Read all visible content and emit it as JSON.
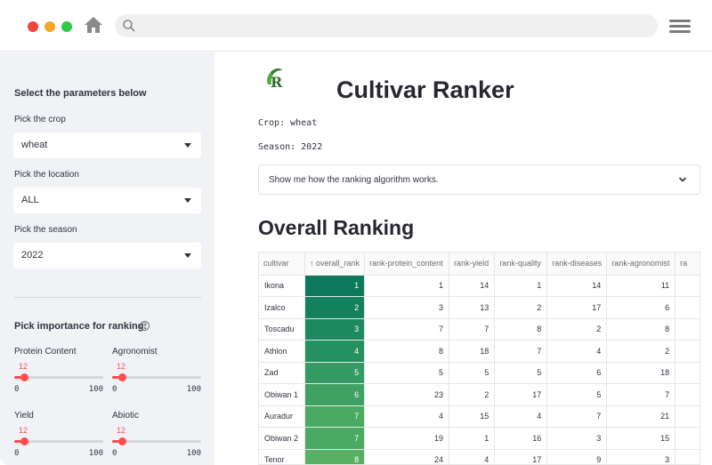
{
  "sidebar": {
    "title": "Select the parameters below",
    "crop": {
      "label": "Pick the crop",
      "value": "wheat"
    },
    "location": {
      "label": "Pick the location",
      "value": "ALL"
    },
    "season": {
      "label": "Pick the season",
      "value": "2022"
    },
    "importance_label": "Pick importance for ranking:",
    "help_icon": "question-circle-icon",
    "sliders": [
      {
        "label": "Protein Content",
        "value": "12",
        "min": "0",
        "max": "100"
      },
      {
        "label": "Agronomist",
        "value": "12",
        "min": "0",
        "max": "100"
      },
      {
        "label": "Yield",
        "value": "12",
        "min": "0",
        "max": "100"
      },
      {
        "label": "Abiotic",
        "value": "12",
        "min": "0",
        "max": "100"
      }
    ]
  },
  "main": {
    "logo": "R",
    "title": "Cultivar Ranker",
    "crop_line": "Crop: wheat",
    "season_line": "Season: 2022",
    "expander_label": "Show me how the ranking algorithm works.",
    "section_title": "Overall Ranking"
  },
  "table": {
    "columns": [
      "cultivar",
      "↑ overall_rank",
      "rank-protein_content",
      "rank-yield",
      "rank-quality",
      "rank-diseases",
      "rank-agronomist",
      "ra"
    ],
    "rows": [
      [
        "Ikona",
        "1",
        "1",
        "14",
        "1",
        "14",
        "11"
      ],
      [
        "Izalco",
        "2",
        "3",
        "13",
        "2",
        "17",
        "6"
      ],
      [
        "Toscadu",
        "3",
        "7",
        "7",
        "8",
        "2",
        "8"
      ],
      [
        "Athlon",
        "4",
        "8",
        "18",
        "7",
        "4",
        "2"
      ],
      [
        "Zad",
        "5",
        "5",
        "5",
        "5",
        "6",
        "18"
      ],
      [
        "Obiwan 1",
        "6",
        "23",
        "2",
        "17",
        "5",
        "7"
      ],
      [
        "Auradur",
        "7",
        "4",
        "15",
        "4",
        "7",
        "21"
      ],
      [
        "Obiwan 2",
        "7",
        "19",
        "1",
        "16",
        "3",
        "15"
      ],
      [
        "Tenor",
        "8",
        "24",
        "4",
        "17",
        "9",
        "3"
      ]
    ],
    "rank_colors": [
      "#0c7a5a",
      "#13825c",
      "#1c8a5e",
      "#269160",
      "#329a62",
      "#3fa262",
      "#4aa962",
      "#4aa962",
      "#58b062"
    ]
  },
  "colors": {
    "accent": "#ff4b4b",
    "sidebar_bg": "#f0f2f6"
  }
}
